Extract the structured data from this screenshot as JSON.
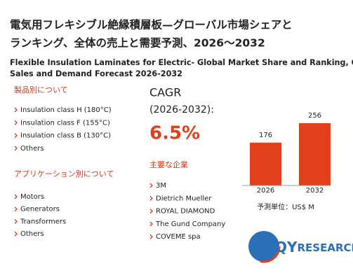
{
  "header": {
    "title_ja": [
      "電気用フレキシブル絶縁積層板—グローバル市場シェアと",
      "ランキング、全体の売上と需要予測、2026～2032"
    ],
    "title_en": [
      "Flexible Insulation Laminates for Electric- Global Market Share and Ranking, Overall",
      "Sales and Demand Forecast 2026-2032"
    ]
  },
  "products": {
    "heading": "製品別について",
    "items": [
      "Insulation class H (180°C)",
      "Insulation class F (155°C)",
      "Insulation class B (130°C)",
      "Others"
    ]
  },
  "applications": {
    "heading": "アプリケーション別について",
    "items": [
      "Motors",
      "Generators",
      "Transformers",
      "Others"
    ]
  },
  "cagr": {
    "label": "CAGR",
    "period": "(2026-2032):",
    "value": "6.5%"
  },
  "companies": {
    "heading": "主要な企業",
    "items": [
      "3M",
      "Dietrich Mueller",
      "ROYAL DIAMOND",
      "The Gund Company",
      "COVEME spa"
    ]
  },
  "chart_data": {
    "type": "bar",
    "categories": [
      "2026",
      "2032"
    ],
    "values": [
      176,
      256
    ],
    "color": "#e2401b",
    "unit_label": "予測単位：US$ M"
  },
  "logo": {
    "prefix": "QY",
    "suffix": "RESEARCH"
  }
}
